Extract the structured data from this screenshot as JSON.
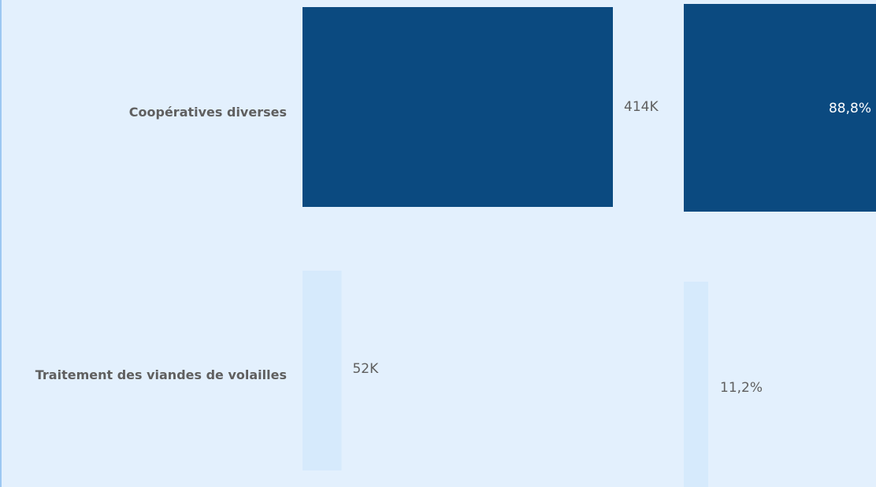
{
  "chart_data": [
    {
      "type": "bar",
      "orientation": "horizontal",
      "categories": [
        "Coopératives diverses",
        "Traitement des viandes de volailles"
      ],
      "values": [
        414,
        52
      ],
      "data_labels": [
        "414K",
        "52K"
      ],
      "unit": "K"
    },
    {
      "type": "bar",
      "orientation": "horizontal",
      "categories": [
        "Coopératives diverses",
        "Traitement des viandes de volailles"
      ],
      "values": [
        88.8,
        11.2
      ],
      "data_labels": [
        "88,8%",
        "11,2%"
      ],
      "unit": "%"
    }
  ],
  "colors": {
    "background": "#e3f0fd",
    "highlight_bar": "#0b4a80",
    "muted_bar": "#d6eafc",
    "label_text": "#5f5f5f",
    "value_text_dark": "#5f5f5f",
    "value_text_light": "#ffffff"
  }
}
